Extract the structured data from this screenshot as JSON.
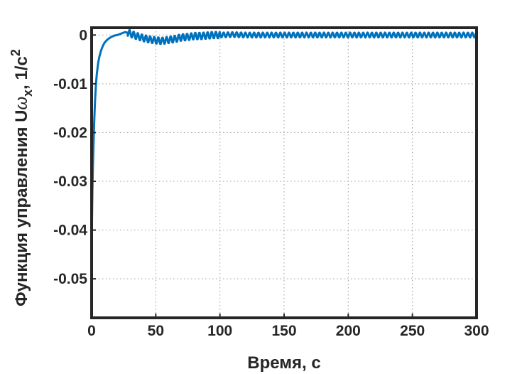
{
  "chart_data": {
    "type": "line",
    "title": "",
    "xlabel": "Время, с",
    "ylabel_parts": {
      "main": "Функция управления U",
      "omega": "ω",
      "sub": "x",
      "unit": ", 1/c",
      "sup": "2"
    },
    "xlim": [
      0,
      300
    ],
    "ylim": [
      -0.058,
      0.0015
    ],
    "xticks": [
      0,
      50,
      100,
      150,
      200,
      250,
      300
    ],
    "xtick_labels": [
      "0",
      "50",
      "100",
      "150",
      "200",
      "250",
      "300"
    ],
    "yticks": [
      0,
      -0.01,
      -0.02,
      -0.03,
      -0.04,
      -0.05
    ],
    "ytick_labels": [
      "0",
      "-0.01",
      "-0.02",
      "-0.03",
      "-0.04",
      "-0.05"
    ],
    "grid": true,
    "legend": "none",
    "series": [
      {
        "color": "#0072BD",
        "x": [
          0,
          0.3,
          0.6,
          1,
          1.5,
          2,
          2.5,
          3,
          3.5,
          4,
          5,
          6,
          7,
          8,
          9,
          10,
          12,
          14,
          16,
          18,
          20,
          22,
          24,
          26,
          28,
          30,
          35,
          40,
          45,
          50,
          55,
          60,
          65,
          70,
          75,
          80,
          85,
          90,
          95,
          100,
          110,
          120,
          140,
          160,
          180,
          200,
          220,
          240,
          260,
          280,
          300
        ],
        "y": [
          -0.044,
          -0.038,
          -0.032,
          -0.027,
          -0.022,
          -0.018,
          -0.0145,
          -0.0118,
          -0.0097,
          -0.0081,
          -0.0059,
          -0.0045,
          -0.0035,
          -0.0027,
          -0.0021,
          -0.0016,
          -0.001,
          -0.0006,
          -0.0003,
          -0.0001,
          0.0,
          0.0002,
          0.0004,
          0.0006,
          0.0005,
          0.0003,
          -0.0002,
          -0.0006,
          -0.0009,
          -0.0011,
          -0.0012,
          -0.001,
          -0.0008,
          -0.0005,
          -0.0004,
          -0.0002,
          -0.0002,
          -0.0001,
          0.0,
          0.0,
          0.0001,
          0.0,
          0.0,
          0.0,
          0.0,
          0.0,
          0.0,
          0.0,
          0.0,
          0.0,
          0.0
        ],
        "oscillation": [
          {
            "from_x": 28,
            "to_x": 100,
            "amplitude": 0.0007,
            "period": 3.2
          },
          {
            "from_x": 100,
            "to_x": 300,
            "amplitude": 0.0005,
            "period": 3.4
          }
        ]
      }
    ]
  }
}
